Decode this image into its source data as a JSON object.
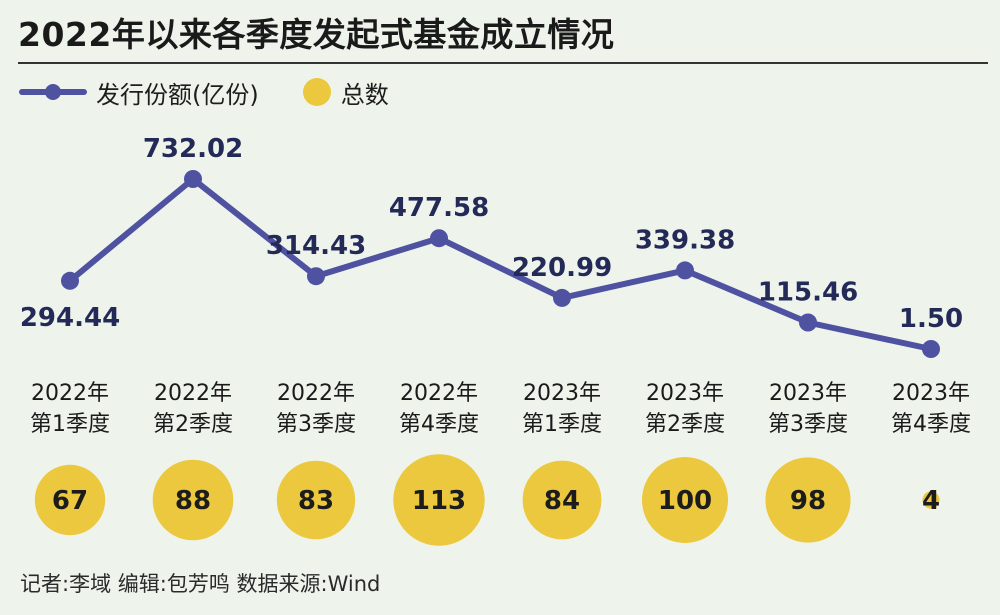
{
  "title": "2022年以来各季度发起式基金成立情况",
  "legend": {
    "line_label": "发行份额(亿份)",
    "dot_label": "总数"
  },
  "colors": {
    "line": "#4e52a0",
    "bubble": "#ecc83e",
    "label": "#242a57",
    "background": "#eef4ec"
  },
  "chart_data": {
    "type": "line",
    "categories": [
      [
        "2022年",
        "第1季度"
      ],
      [
        "2022年",
        "第2季度"
      ],
      [
        "2022年",
        "第3季度"
      ],
      [
        "2022年",
        "第4季度"
      ],
      [
        "2023年",
        "第1季度"
      ],
      [
        "2023年",
        "第2季度"
      ],
      [
        "2023年",
        "第3季度"
      ],
      [
        "2023年",
        "第4季度"
      ]
    ],
    "series": [
      {
        "name": "发行份额(亿份)",
        "values": [
          294.44,
          732.02,
          314.43,
          477.58,
          220.99,
          339.38,
          115.46,
          1.5
        ],
        "value_labels": [
          "294.44",
          "732.02",
          "314.43",
          "477.58",
          "220.99",
          "339.38",
          "115.46",
          "1.50"
        ]
      },
      {
        "name": "总数",
        "type": "bubble",
        "values": [
          67,
          88,
          83,
          113,
          84,
          100,
          98,
          4
        ]
      }
    ],
    "grid": false,
    "legend_position": "top-left"
  },
  "footer": "记者:李域   编辑:包芳鸣   数据来源:Wind"
}
